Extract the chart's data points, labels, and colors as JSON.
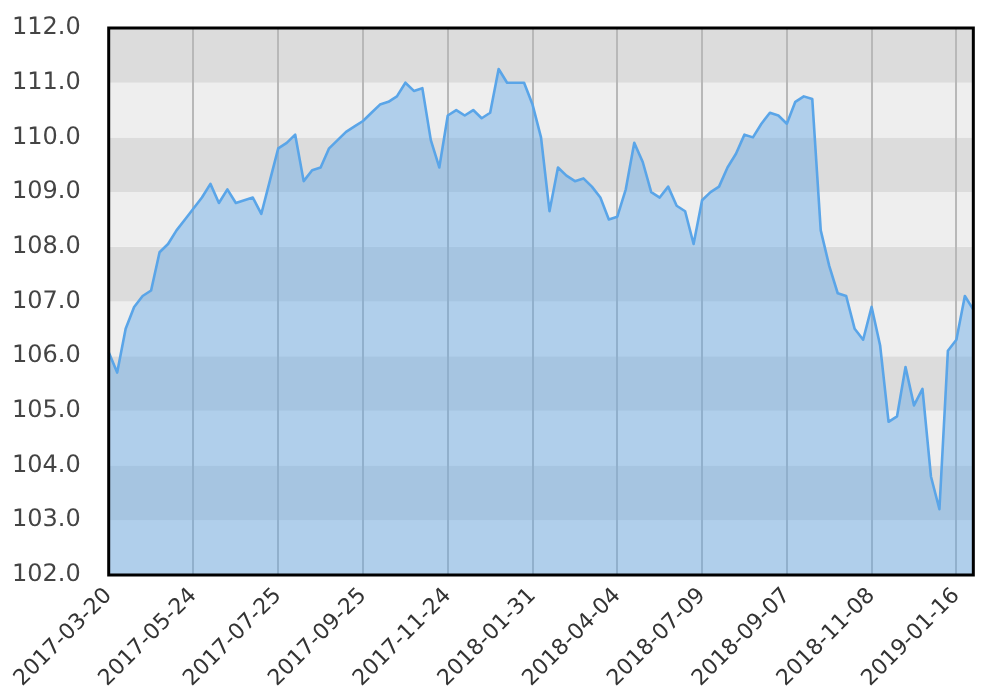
{
  "chart_data": {
    "type": "area",
    "categories": [
      "2017-03-20",
      null,
      null,
      null,
      null,
      null,
      null,
      null,
      null,
      null,
      "2017-05-24",
      null,
      null,
      null,
      null,
      null,
      null,
      null,
      null,
      null,
      "2017-07-25",
      null,
      null,
      null,
      null,
      null,
      null,
      null,
      null,
      null,
      "2017-09-25",
      null,
      null,
      null,
      null,
      null,
      null,
      null,
      null,
      null,
      "2017-11-24",
      null,
      null,
      null,
      null,
      null,
      null,
      null,
      null,
      null,
      "2018-01-31",
      null,
      null,
      null,
      null,
      null,
      null,
      null,
      null,
      null,
      "2018-04-04",
      null,
      null,
      null,
      null,
      null,
      null,
      null,
      null,
      null,
      "2018-07-09",
      null,
      null,
      null,
      null,
      null,
      null,
      null,
      null,
      null,
      "2018-09-07",
      null,
      null,
      null,
      null,
      null,
      null,
      null,
      null,
      null,
      "2018-11-08",
      null,
      null,
      null,
      null,
      null,
      null,
      null,
      null,
      null,
      "2019-01-16",
      null,
      null
    ],
    "series": [
      {
        "color": "#5aa5e8",
        "values": [
          106.07,
          105.7,
          106.5,
          106.9,
          107.1,
          107.2,
          107.9,
          108.05,
          108.3,
          108.5,
          108.7,
          108.9,
          109.15,
          108.8,
          109.05,
          108.8,
          108.85,
          108.9,
          108.6,
          109.2,
          109.8,
          109.9,
          110.05,
          109.2,
          109.4,
          109.45,
          109.8,
          109.95,
          110.1,
          110.2,
          110.3,
          110.45,
          110.6,
          110.65,
          110.75,
          111.0,
          110.85,
          110.9,
          109.95,
          109.45,
          110.4,
          110.5,
          110.4,
          110.5,
          110.35,
          110.45,
          111.25,
          111.0,
          111.0,
          111.0,
          110.6,
          110.0,
          108.65,
          109.45,
          109.3,
          109.2,
          109.25,
          109.1,
          108.9,
          108.5,
          108.55,
          109.05,
          109.9,
          109.55,
          109.0,
          108.9,
          109.1,
          108.75,
          108.65,
          108.05,
          108.85,
          109.0,
          109.1,
          109.45,
          109.7,
          110.05,
          110.0,
          110.25,
          110.45,
          110.4,
          110.25,
          110.65,
          110.75,
          110.7,
          108.3,
          107.65,
          107.15,
          107.1,
          106.5,
          106.3,
          106.9,
          106.2,
          104.8,
          104.9,
          105.8,
          105.1,
          105.4,
          103.8,
          103.2,
          106.1,
          106.3,
          107.1,
          106.85
        ]
      }
    ],
    "ylim": [
      102,
      112
    ],
    "yticks": [
      {
        "value": 102,
        "label": "102.0"
      },
      {
        "value": 103,
        "label": "103.0"
      },
      {
        "value": 104,
        "label": "104.0"
      },
      {
        "value": 105,
        "label": "105.0"
      },
      {
        "value": 106,
        "label": "106.0"
      },
      {
        "value": 107,
        "label": "107.0"
      },
      {
        "value": 108,
        "label": "108.0"
      },
      {
        "value": 109,
        "label": "109.0"
      },
      {
        "value": 110,
        "label": "110.0"
      },
      {
        "value": 111,
        "label": "111.0"
      },
      {
        "value": 112,
        "label": "112.0"
      }
    ],
    "grid": true
  }
}
